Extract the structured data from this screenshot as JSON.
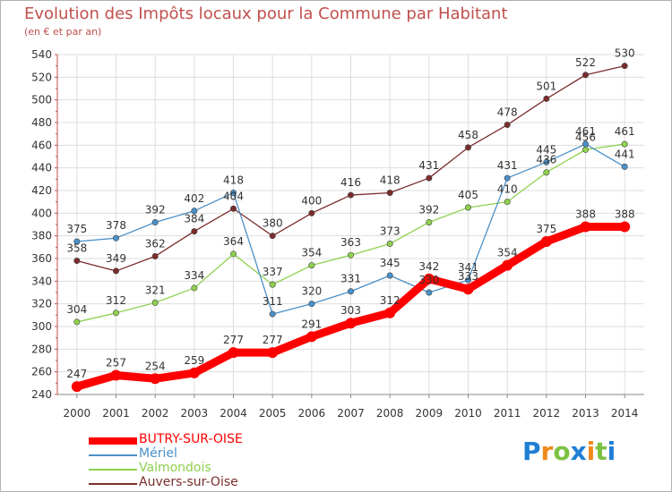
{
  "chart_data": {
    "type": "line",
    "title": "Evolution des Impôts locaux pour la Commune par Habitant",
    "subtitle": "(en € et par an)",
    "x": [
      "2000",
      "2001",
      "2002",
      "2003",
      "2004",
      "2005",
      "2006",
      "2007",
      "2008",
      "2009",
      "2010",
      "2011",
      "2012",
      "2013",
      "2014"
    ],
    "ylim": [
      240,
      540
    ],
    "yticks": [
      240,
      260,
      280,
      300,
      320,
      340,
      360,
      380,
      400,
      420,
      440,
      460,
      480,
      500,
      520,
      540
    ],
    "grid": true,
    "series": [
      {
        "name": "Auvers-sur-Oise",
        "color": "#7b2c2c",
        "values": [
          358,
          349,
          362,
          384,
          404,
          380,
          400,
          416,
          418,
          431,
          458,
          478,
          501,
          522,
          530
        ]
      },
      {
        "name": "Valmondois",
        "color": "#8fd14f",
        "values": [
          304,
          312,
          321,
          334,
          364,
          337,
          354,
          363,
          373,
          392,
          405,
          410,
          436,
          456,
          461
        ]
      },
      {
        "name": "Mériel",
        "color": "#4a90c8",
        "values": [
          375,
          378,
          392,
          402,
          418,
          311,
          320,
          331,
          345,
          330,
          341,
          431,
          445,
          461,
          441
        ]
      },
      {
        "name": "BUTRY-SUR-OISE",
        "color": "#ff0000",
        "values": [
          247,
          257,
          254,
          259,
          277,
          277,
          291,
          303,
          312,
          342,
          333,
          354,
          375,
          388,
          388
        ]
      }
    ],
    "legend": {
      "position": "bottom-left",
      "entries": [
        "BUTRY-SUR-OISE",
        "Mériel",
        "Valmondois",
        "Auvers-sur-Oise"
      ]
    }
  },
  "brand": {
    "letters": [
      {
        "ch": "P",
        "color": "#1f7fd4"
      },
      {
        "ch": "r",
        "color": "#f08a1c"
      },
      {
        "ch": "o",
        "color": "#7cc242"
      },
      {
        "ch": "x",
        "color": "#1f7fd4"
      },
      {
        "ch": "i",
        "color": "#f08a1c"
      },
      {
        "ch": "t",
        "color": "#7cc242"
      },
      {
        "ch": "i",
        "color": "#1f7fd4"
      }
    ]
  }
}
